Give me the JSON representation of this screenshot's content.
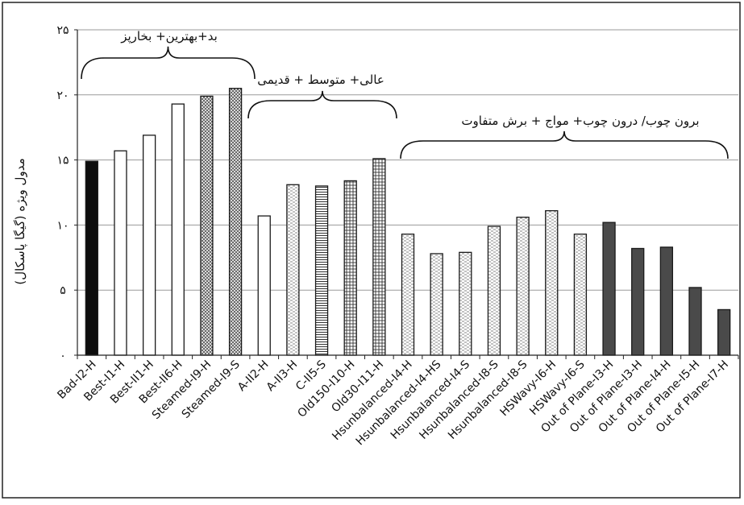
{
  "chart_data": {
    "type": "bar",
    "ylabel": "مدول ویژه (گیگا پاسکال)",
    "ylim": [
      0,
      25
    ],
    "y_ticks": [
      {
        "value": 0,
        "label": "۰"
      },
      {
        "value": 5,
        "label": "۵"
      },
      {
        "value": 10,
        "label": "۱۰"
      },
      {
        "value": 15,
        "label": "۱۵"
      },
      {
        "value": 20,
        "label": "۲۰"
      },
      {
        "value": 25,
        "label": "۲۵"
      }
    ],
    "grid": true,
    "categories": [
      "Bad-I2-H",
      "Best-I1-H",
      "Best-II1-H",
      "Best-II6-H",
      "Steamed-I9-H",
      "Steamed-I9-S",
      "A-II2-H",
      "A-II3-H",
      "C-II5-S",
      "Old150-I10-H",
      "Old30-I11-H",
      "Hsunbalanced-I4-H",
      "Hsunbalanced-I4-HS",
      "Hsunbalanced-I4-S",
      "Hsunbalanced-I8-S",
      "Hsunbalanced-I8-S",
      "HSWavy-I6-H",
      "HSWavy-I6-S",
      "Out of Plane-I3-H",
      "Out of Plane-I3-H",
      "Out of Plane-I4-H",
      "Out of Plane-I5-H",
      "Out of Plane-I7-H"
    ],
    "values": [
      14.9,
      15.7,
      16.9,
      19.3,
      19.9,
      20.5,
      10.7,
      13.1,
      13.0,
      13.4,
      15.1,
      9.3,
      7.8,
      7.9,
      9.9,
      10.6,
      11.1,
      9.3,
      10.2,
      8.2,
      8.3,
      5.2,
      3.5
    ],
    "fills": [
      "solid-black",
      "white",
      "white",
      "white",
      "dots",
      "dots",
      "white",
      "dash",
      "hstripe",
      "grid",
      "grid",
      "dash",
      "dash",
      "dash",
      "dash",
      "dash",
      "dash",
      "dash",
      "dark-gray",
      "dark-gray",
      "dark-gray",
      "dark-gray",
      "dark-gray"
    ],
    "groups": [
      {
        "label": "بد+بهترین+ بخارپز",
        "from": 0,
        "to": 5
      },
      {
        "label": "عالی+ متوسط + قدیمی",
        "from": 6,
        "to": 10
      },
      {
        "label": "برون چوب/ درون چوب+ مواج + برش متفاوت",
        "from": 11,
        "to": 22
      }
    ],
    "colors": {
      "bar_edge": "#1a1a1a",
      "solid": "#0d0d0d",
      "dark": "#4a4a4a",
      "grid": "#9a9a9a",
      "background": "#ffffff"
    }
  }
}
